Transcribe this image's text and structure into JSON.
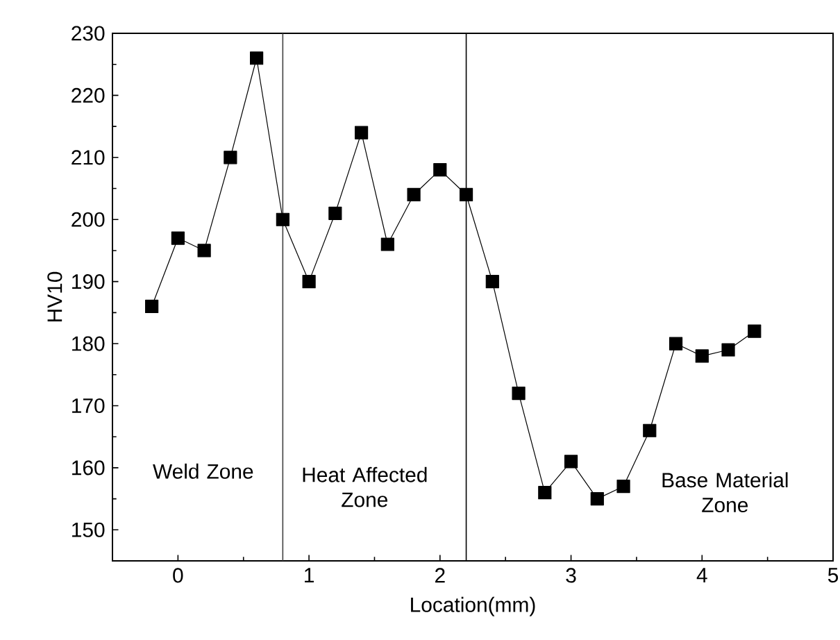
{
  "chart_data": {
    "type": "line",
    "xlabel": "Location(mm)",
    "ylabel": "HV10",
    "x": [
      -0.2,
      0,
      0.2,
      0.4,
      0.6,
      0.8,
      1.0,
      1.2,
      1.4,
      1.6,
      1.8,
      2.0,
      2.2,
      2.4,
      2.6,
      2.8,
      3.0,
      3.2,
      3.4,
      3.6,
      3.8,
      4.0,
      4.2,
      4.4
    ],
    "series": [
      {
        "color": "#000000",
        "values": [
          186,
          197,
          195,
          210,
          226,
          200,
          190,
          201,
          214,
          196,
          204,
          208,
          204,
          190,
          172,
          156,
          161,
          155,
          157,
          166,
          180,
          178,
          179,
          182
        ]
      }
    ],
    "xlim": [
      -0.5,
      5
    ],
    "xticks": [
      0,
      1,
      2,
      3,
      4,
      5
    ],
    "ylim": [
      145,
      230
    ],
    "yticks": [
      150,
      160,
      170,
      180,
      190,
      200,
      210,
      220,
      230
    ],
    "marker": "square",
    "line_style": "solid",
    "grid": false,
    "ref_lines": [
      {
        "axis": "x",
        "value": 0.8,
        "color": "#404040"
      },
      {
        "axis": "x",
        "value": 2.2,
        "color": "#000000"
      }
    ],
    "annotations": [
      "Weld Zone",
      "Heat Affected Zone",
      "Base Material Zone"
    ]
  }
}
